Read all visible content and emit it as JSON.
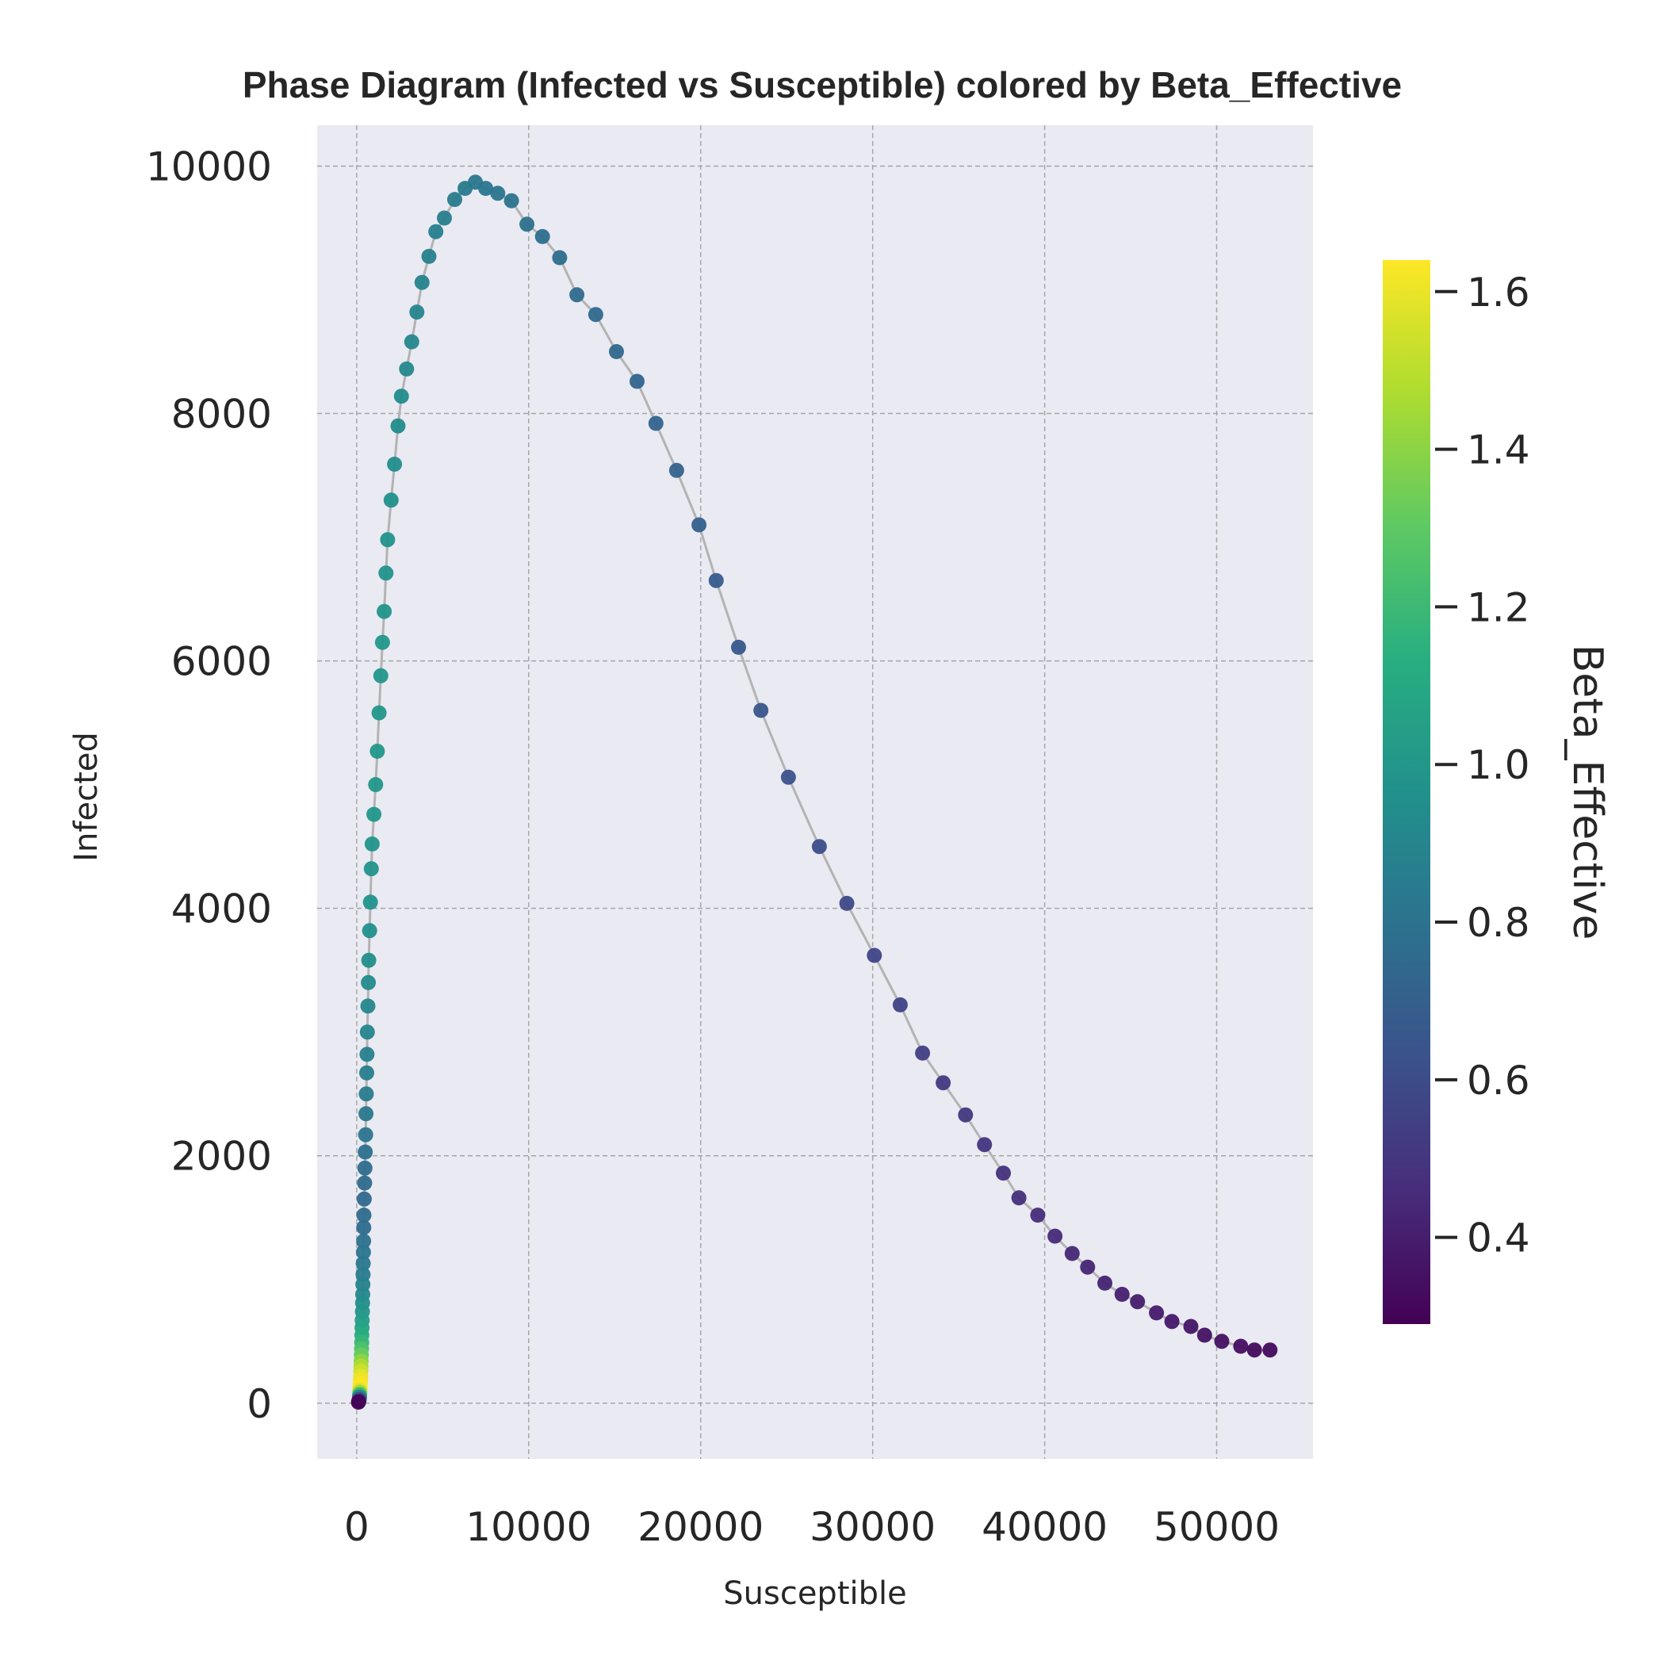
{
  "chart_data": {
    "type": "scatter",
    "title": "Phase Diagram (Infected vs Susceptible) colored by Beta_Effective",
    "xlabel": "Susceptible",
    "ylabel": "Infected",
    "xlim": [
      -2300,
      55600
    ],
    "ylim": [
      -450,
      10330
    ],
    "xticks": [
      0,
      10000,
      20000,
      30000,
      40000,
      50000
    ],
    "yticks": [
      0,
      2000,
      4000,
      6000,
      8000,
      10000
    ],
    "grid": true,
    "colorbar": {
      "label": "Beta_Effective",
      "colormap": "viridis",
      "range": [
        0.29,
        1.64
      ],
      "ticks": [
        0.4,
        0.6,
        0.8,
        1.0,
        1.2,
        1.4,
        1.6
      ],
      "tick_labels": [
        "0.4",
        "0.6",
        "0.8",
        "1.0",
        "1.2",
        "1.4",
        "1.6"
      ]
    },
    "trajectory_points": [
      [
        53100,
        430,
        0.33
      ],
      [
        52200,
        430,
        0.33
      ],
      [
        51400,
        460,
        0.34
      ],
      [
        50300,
        500,
        0.35
      ],
      [
        49300,
        550,
        0.36
      ],
      [
        48500,
        620,
        0.37
      ],
      [
        47400,
        660,
        0.38
      ],
      [
        46500,
        730,
        0.39
      ],
      [
        45400,
        820,
        0.4
      ],
      [
        44500,
        880,
        0.41
      ],
      [
        43500,
        970,
        0.42
      ],
      [
        42500,
        1100,
        0.43
      ],
      [
        41600,
        1210,
        0.44
      ],
      [
        40600,
        1350,
        0.45
      ],
      [
        39600,
        1520,
        0.46
      ],
      [
        38500,
        1660,
        0.47
      ],
      [
        37600,
        1860,
        0.48
      ],
      [
        36500,
        2090,
        0.5
      ],
      [
        35400,
        2330,
        0.51
      ],
      [
        34100,
        2590,
        0.52
      ],
      [
        32900,
        2830,
        0.54
      ],
      [
        31600,
        3220,
        0.56
      ],
      [
        30100,
        3620,
        0.57
      ],
      [
        28500,
        4040,
        0.59
      ],
      [
        26900,
        4500,
        0.61
      ],
      [
        25100,
        5060,
        0.63
      ],
      [
        23500,
        5600,
        0.65
      ],
      [
        22200,
        6110,
        0.66
      ],
      [
        20900,
        6650,
        0.68
      ],
      [
        19900,
        7100,
        0.7
      ],
      [
        18600,
        7540,
        0.71
      ],
      [
        17400,
        7920,
        0.72
      ],
      [
        16300,
        8260,
        0.73
      ],
      [
        15100,
        8500,
        0.74
      ],
      [
        13900,
        8800,
        0.75
      ],
      [
        12800,
        8960,
        0.76
      ],
      [
        11800,
        9260,
        0.77
      ],
      [
        10800,
        9430,
        0.78
      ],
      [
        9900,
        9530,
        0.79
      ],
      [
        9000,
        9720,
        0.8
      ],
      [
        8200,
        9780,
        0.81
      ],
      [
        7500,
        9820,
        0.82
      ],
      [
        6900,
        9870,
        0.83
      ],
      [
        6300,
        9820,
        0.84
      ],
      [
        5700,
        9730,
        0.85
      ],
      [
        5100,
        9580,
        0.86
      ],
      [
        4600,
        9470,
        0.87
      ],
      [
        4200,
        9270,
        0.88
      ],
      [
        3800,
        9060,
        0.89
      ],
      [
        3500,
        8820,
        0.9
      ],
      [
        3200,
        8580,
        0.91
      ],
      [
        2900,
        8360,
        0.92
      ],
      [
        2600,
        8140,
        0.93
      ],
      [
        2400,
        7900,
        0.94
      ],
      [
        2200,
        7590,
        0.95
      ],
      [
        2000,
        7300,
        0.96
      ],
      [
        1800,
        6980,
        0.97
      ],
      [
        1700,
        6710,
        0.98
      ],
      [
        1600,
        6400,
        0.99
      ],
      [
        1500,
        6150,
        1.0
      ],
      [
        1400,
        5880,
        1.0
      ],
      [
        1300,
        5580,
        1.0
      ],
      [
        1200,
        5270,
        1.0
      ],
      [
        1100,
        5000,
        1.0
      ],
      [
        1000,
        4760,
        1.0
      ],
      [
        900,
        4520,
        0.99
      ],
      [
        850,
        4320,
        0.98
      ],
      [
        800,
        4050,
        0.97
      ],
      [
        750,
        3820,
        0.96
      ],
      [
        700,
        3580,
        0.95
      ],
      [
        680,
        3400,
        0.93
      ],
      [
        650,
        3210,
        0.91
      ],
      [
        620,
        3000,
        0.9
      ],
      [
        600,
        2820,
        0.88
      ],
      [
        580,
        2670,
        0.86
      ],
      [
        560,
        2500,
        0.85
      ],
      [
        540,
        2340,
        0.83
      ],
      [
        520,
        2170,
        0.81
      ],
      [
        500,
        2030,
        0.79
      ],
      [
        480,
        1900,
        0.77
      ],
      [
        460,
        1780,
        0.76
      ],
      [
        440,
        1650,
        0.75
      ],
      [
        420,
        1520,
        0.76
      ],
      [
        410,
        1420,
        0.77
      ],
      [
        400,
        1310,
        0.79
      ],
      [
        390,
        1220,
        0.81
      ],
      [
        380,
        1130,
        0.83
      ],
      [
        370,
        1040,
        0.85
      ],
      [
        360,
        960,
        0.88
      ],
      [
        350,
        880,
        0.91
      ],
      [
        340,
        810,
        0.95
      ],
      [
        330,
        740,
        0.99
      ],
      [
        320,
        670,
        1.03
      ],
      [
        310,
        610,
        1.07
      ],
      [
        300,
        550,
        1.12
      ],
      [
        290,
        490,
        1.18
      ],
      [
        280,
        440,
        1.25
      ],
      [
        270,
        390,
        1.32
      ],
      [
        260,
        340,
        1.4
      ],
      [
        250,
        300,
        1.47
      ],
      [
        240,
        260,
        1.53
      ],
      [
        230,
        220,
        1.58
      ],
      [
        220,
        190,
        1.61
      ],
      [
        210,
        160,
        1.63
      ],
      [
        200,
        130,
        1.64
      ],
      [
        190,
        110,
        1.6
      ],
      [
        180,
        90,
        1.45
      ],
      [
        170,
        70,
        1.2
      ],
      [
        160,
        50,
        0.9
      ],
      [
        150,
        30,
        0.6
      ],
      [
        120,
        15,
        0.4
      ],
      [
        100,
        8,
        0.3
      ]
    ]
  }
}
